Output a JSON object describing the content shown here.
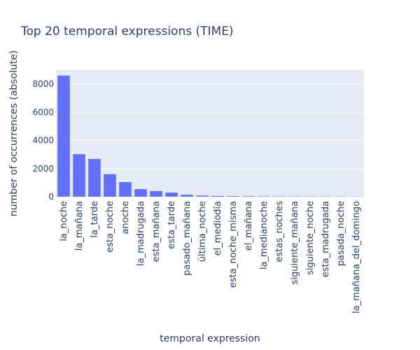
{
  "chart_data": {
    "type": "bar",
    "title": "Top 20 temporal expressions (TIME)",
    "xlabel": "temporal expression",
    "ylabel": "number of occurrences (absolute)",
    "categories": [
      "la_noche",
      "la_mañana",
      "la_tarde",
      "esta_noche",
      "anoche",
      "la_madrugada",
      "esta_mañana",
      "esta_tarde",
      "pasado_mañana",
      "última_noche",
      "el_mediodía",
      "esta_noche_misma",
      "el_mañana",
      "la_medianoche",
      "estas_noches",
      "siguiente_mañana",
      "siguiente_noche",
      "esta_madrugada",
      "pasada_noche",
      "la_mañana_del_domingo"
    ],
    "values": [
      8600,
      3020,
      2680,
      1600,
      1040,
      540,
      400,
      290,
      140,
      80,
      50,
      40,
      35,
      30,
      25,
      22,
      20,
      18,
      15,
      12
    ],
    "ylim": [
      0,
      9000
    ],
    "yticks": [
      0,
      2000,
      4000,
      6000,
      8000
    ],
    "grid": true,
    "colors": {
      "bar": "#636efa",
      "plot_bg": "#e5ecf6"
    }
  }
}
